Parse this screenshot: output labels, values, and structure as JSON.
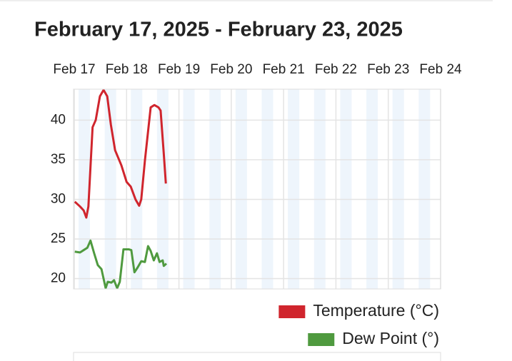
{
  "chart_data": {
    "type": "line",
    "title": "February 17, 2025 - February 23, 2025",
    "xlim": [
      0,
      7
    ],
    "xticks": [
      {
        "value": 0,
        "label": "Feb 17"
      },
      {
        "value": 1,
        "label": "Feb 18"
      },
      {
        "value": 2,
        "label": "Feb 19"
      },
      {
        "value": 3,
        "label": "Feb 20"
      },
      {
        "value": 4,
        "label": "Feb 21"
      },
      {
        "value": 5,
        "label": "Feb 22"
      },
      {
        "value": 6,
        "label": "Feb 23"
      },
      {
        "value": 7,
        "label": "Feb 24"
      }
    ],
    "ylim": [
      18.7,
      43.9
    ],
    "yticks": [
      20,
      25,
      30,
      35,
      40
    ],
    "grid": true,
    "legend": "bottom-right",
    "series": [
      {
        "name": "Temperature (°C)",
        "color": "#d0252d",
        "x": [
          0.01,
          0.11,
          0.18,
          0.23,
          0.27,
          0.35,
          0.41,
          0.49,
          0.56,
          0.63,
          0.7,
          0.78,
          0.9,
          1.0,
          1.08,
          1.17,
          1.24,
          1.28,
          1.35,
          1.46,
          1.53,
          1.61,
          1.65,
          1.71,
          1.75
        ],
        "values": [
          29.7,
          29.1,
          28.6,
          27.7,
          29.1,
          39.1,
          40.0,
          43.0,
          43.8,
          43.0,
          39.4,
          36.2,
          34.3,
          32.2,
          31.6,
          30.0,
          29.2,
          30.0,
          34.9,
          41.6,
          41.9,
          41.6,
          41.2,
          35.8,
          32.0
        ]
      },
      {
        "name": "Dew Point (°)",
        "color": "#4f9a3f",
        "x": [
          0.01,
          0.11,
          0.18,
          0.25,
          0.31,
          0.38,
          0.45,
          0.52,
          0.6,
          0.64,
          0.71,
          0.76,
          0.82,
          0.87,
          0.94,
          1.04,
          1.09,
          1.15,
          1.21,
          1.28,
          1.35,
          1.41,
          1.46,
          1.52,
          1.58,
          1.63,
          1.69,
          1.71,
          1.76
        ],
        "values": [
          23.4,
          23.3,
          23.6,
          23.9,
          24.8,
          23.2,
          21.7,
          21.2,
          18.8,
          19.6,
          19.5,
          19.8,
          18.8,
          19.6,
          23.7,
          23.7,
          23.6,
          20.8,
          21.4,
          22.2,
          22.1,
          24.1,
          23.5,
          22.3,
          23.2,
          22.1,
          22.3,
          21.6,
          21.9
        ]
      }
    ]
  }
}
